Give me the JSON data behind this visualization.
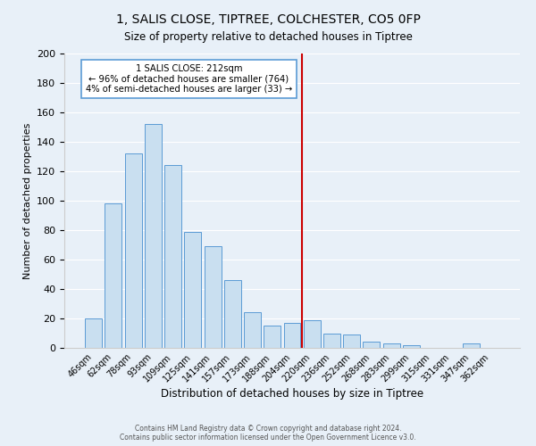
{
  "title": "1, SALIS CLOSE, TIPTREE, COLCHESTER, CO5 0FP",
  "subtitle": "Size of property relative to detached houses in Tiptree",
  "xlabel": "Distribution of detached houses by size in Tiptree",
  "ylabel": "Number of detached properties",
  "bar_labels": [
    "46sqm",
    "62sqm",
    "78sqm",
    "93sqm",
    "109sqm",
    "125sqm",
    "141sqm",
    "157sqm",
    "173sqm",
    "188sqm",
    "204sqm",
    "220sqm",
    "236sqm",
    "252sqm",
    "268sqm",
    "283sqm",
    "299sqm",
    "315sqm",
    "331sqm",
    "347sqm",
    "362sqm"
  ],
  "bar_values": [
    20,
    98,
    132,
    152,
    124,
    79,
    69,
    46,
    24,
    15,
    17,
    19,
    10,
    9,
    4,
    3,
    2,
    0,
    0,
    3,
    0
  ],
  "bar_color": "#c9dff0",
  "bar_edge_color": "#5b9bd5",
  "vline_x": 10.5,
  "vline_color": "#cc0000",
  "annotation_title": "1 SALIS CLOSE: 212sqm",
  "annotation_line1": "← 96% of detached houses are smaller (764)",
  "annotation_line2": "4% of semi-detached houses are larger (33) →",
  "annotation_box_color": "#ffffff",
  "annotation_box_edge": "#5b9bd5",
  "ylim": [
    0,
    200
  ],
  "yticks": [
    0,
    20,
    40,
    60,
    80,
    100,
    120,
    140,
    160,
    180,
    200
  ],
  "footer1": "Contains HM Land Registry data © Crown copyright and database right 2024.",
  "footer2": "Contains public sector information licensed under the Open Government Licence v3.0.",
  "bg_color": "#e8f0f8",
  "plot_bg_color": "#e8f0f8",
  "grid_color": "#ffffff",
  "figsize": [
    6.0,
    5.0
  ],
  "dpi": 100
}
